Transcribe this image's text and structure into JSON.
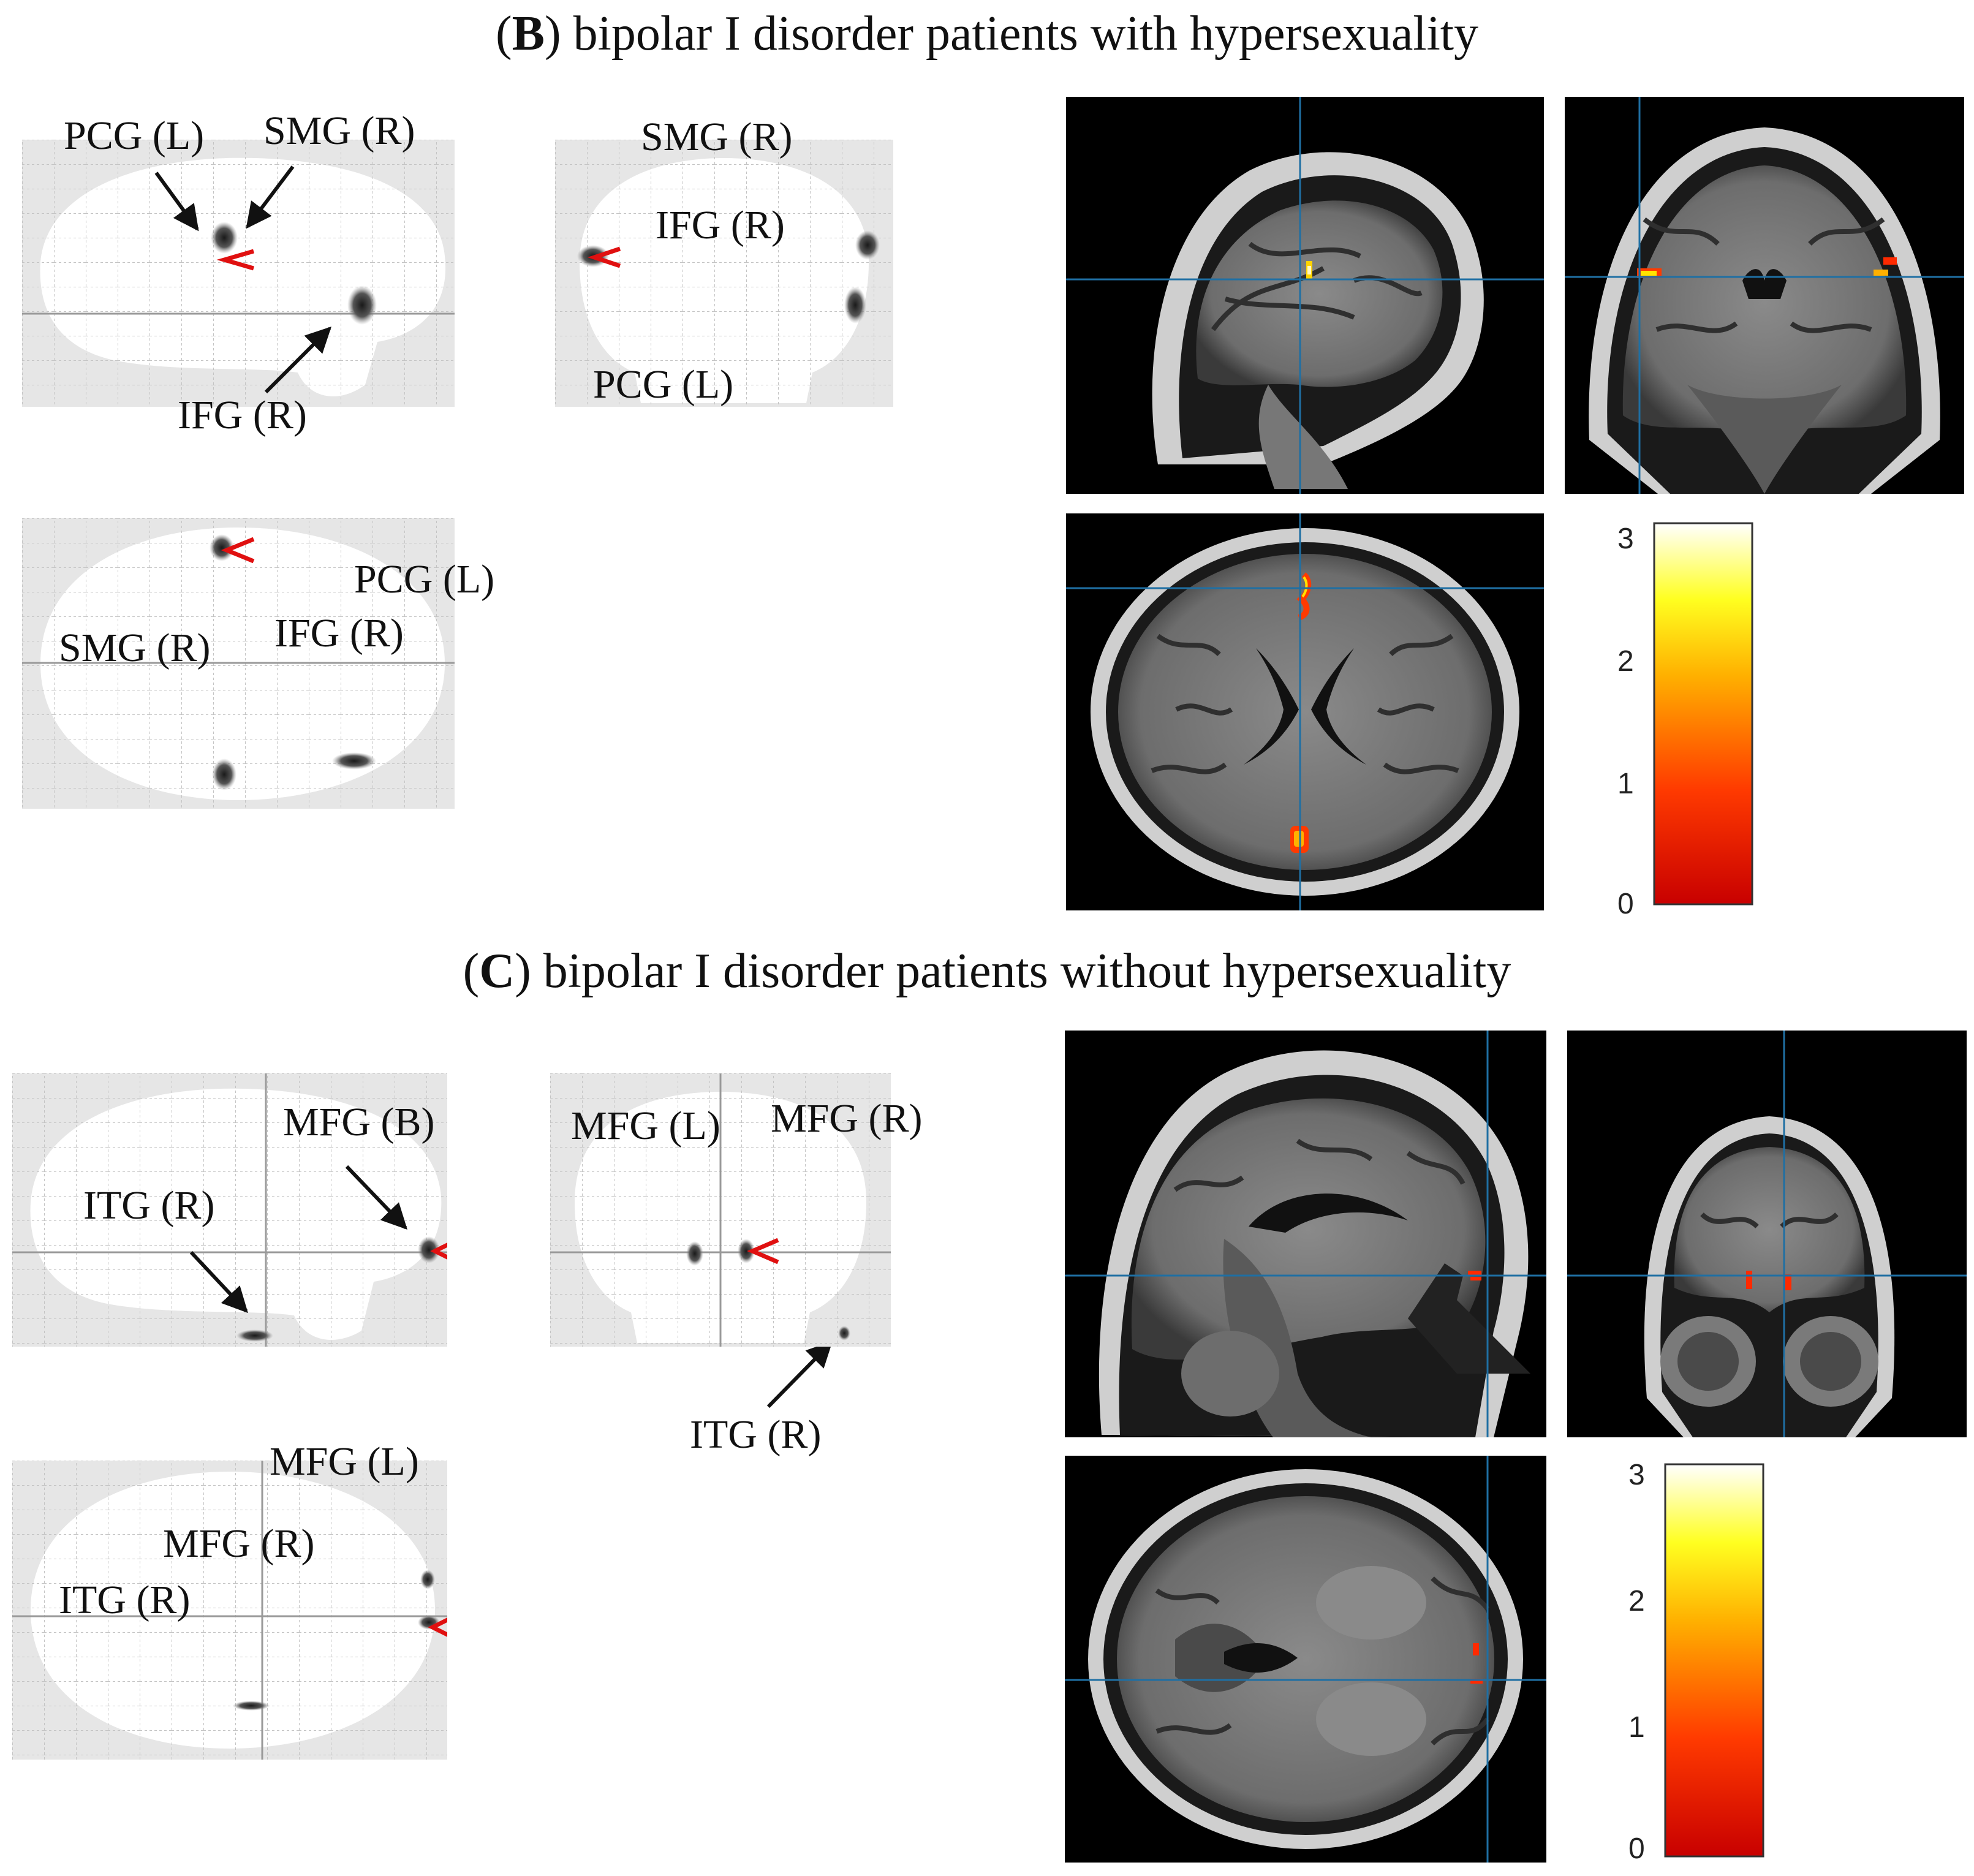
{
  "panels": [
    {
      "letter": "B",
      "title": " bipolar I disorder patients with hypersexuality",
      "glass_labels": {
        "sagittal": [
          "PCG (L)",
          "SMG (R)",
          "IFG (R)"
        ],
        "coronal": [
          "SMG (R)",
          "IFG (R)",
          "PCG (L)"
        ],
        "axial": [
          "PCG (L)",
          "SMG (R)",
          "IFG (R)"
        ]
      },
      "colorbar": {
        "ticks": [
          "3",
          "2",
          "1",
          "0"
        ],
        "min": 0,
        "max": 3
      }
    },
    {
      "letter": "C",
      "title": " bipolar I disorder patients without hypersexuality",
      "glass_labels": {
        "sagittal": [
          "MFG (B)",
          "ITG (R)"
        ],
        "coronal": [
          "MFG (L)",
          "MFG (R)",
          "ITG (R)"
        ],
        "axial": [
          "MFG (L)",
          "MFG (R)",
          "ITG (R)"
        ]
      },
      "colorbar": {
        "ticks": [
          "3",
          "2",
          "1",
          "0"
        ],
        "min": 0,
        "max": 3
      }
    }
  ],
  "colors": {
    "crosshair": "#1f6fa3",
    "arrow": "#111111",
    "cursor": "#e01010",
    "grid": "#bdbdbd",
    "glass_bg": "#e6e6e6"
  }
}
